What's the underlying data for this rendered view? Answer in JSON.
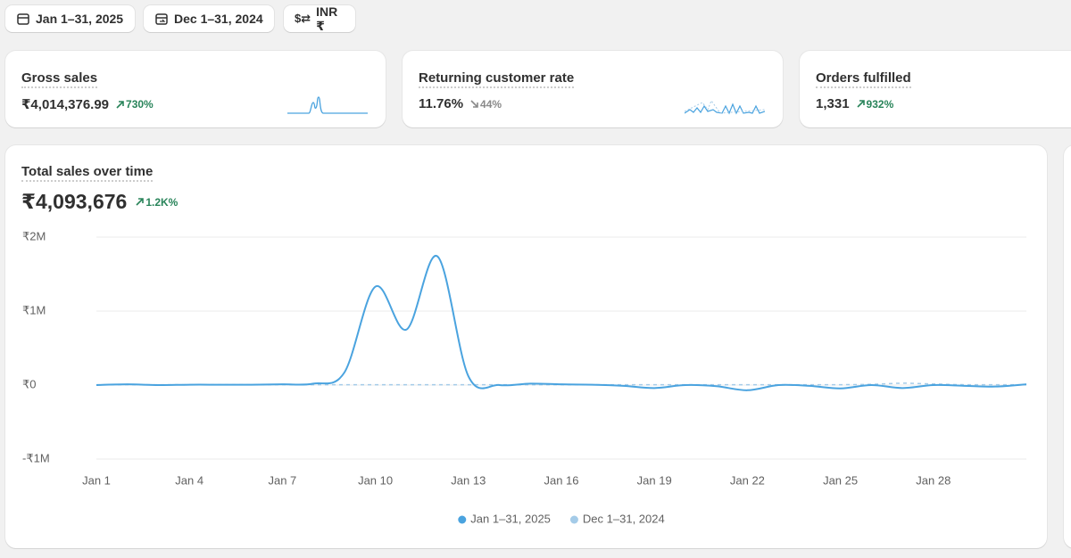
{
  "toolbar": {
    "buttons": [
      "Jan 1–31, 2025",
      "Dec 1–31, 2024",
      "INR ₹"
    ]
  },
  "metrics": [
    {
      "title": "Gross sales",
      "value": "₹4,014,376.99",
      "change": "730%",
      "trend": "up"
    },
    {
      "title": "Returning customer rate",
      "value": "11.76%",
      "change": "44%",
      "trend": "down"
    },
    {
      "title": "Orders fulfilled",
      "value": "1,331",
      "change": "932%",
      "trend": "up"
    }
  ],
  "main": {
    "title": "Total sales over time",
    "total": "₹4,093,676",
    "change": "1.2K%"
  },
  "chart_data": {
    "type": "line",
    "categories": [
      "Jan 1",
      null,
      null,
      "Jan 4",
      null,
      null,
      "Jan 7",
      null,
      null,
      "Jan 10",
      null,
      null,
      "Jan 13",
      null,
      null,
      "Jan 16",
      null,
      null,
      "Jan 19",
      null,
      null,
      "Jan 22",
      null,
      null,
      "Jan 25",
      null,
      null,
      "Jan 28",
      null,
      null,
      null
    ],
    "series": [
      {
        "name": "Jan 1–31, 2025",
        "color": "#4aa3df",
        "style": "solid",
        "values": [
          0,
          10000,
          0,
          5000,
          5000,
          5000,
          10000,
          20000,
          170000,
          1330000,
          750000,
          1740000,
          120000,
          0,
          20000,
          10000,
          5000,
          -10000,
          -40000,
          0,
          -15000,
          -70000,
          0,
          -10000,
          -45000,
          0,
          -40000,
          0,
          -10000,
          -20000,
          10000
        ]
      },
      {
        "name": "Dec 1–31, 2024",
        "color": "#a4cbe8",
        "style": "dashed",
        "values": [
          5000,
          5000,
          5000,
          5000,
          5000,
          5000,
          5000,
          5000,
          5000,
          5000,
          5000,
          5000,
          5000,
          5000,
          5000,
          5000,
          5000,
          5000,
          5000,
          5000,
          5000,
          5000,
          5000,
          5000,
          5000,
          10000,
          25000,
          15000,
          5000,
          5000,
          5000
        ]
      }
    ],
    "ylim": [
      -1000000,
      2000000
    ],
    "yticks": [
      {
        "value": -1000000,
        "label": "-₹1M"
      },
      {
        "value": 0,
        "label": "₹0"
      },
      {
        "value": 1000000,
        "label": "₹1M"
      },
      {
        "value": 2000000,
        "label": "₹2M"
      }
    ],
    "grid": true,
    "legend": "bottom"
  }
}
